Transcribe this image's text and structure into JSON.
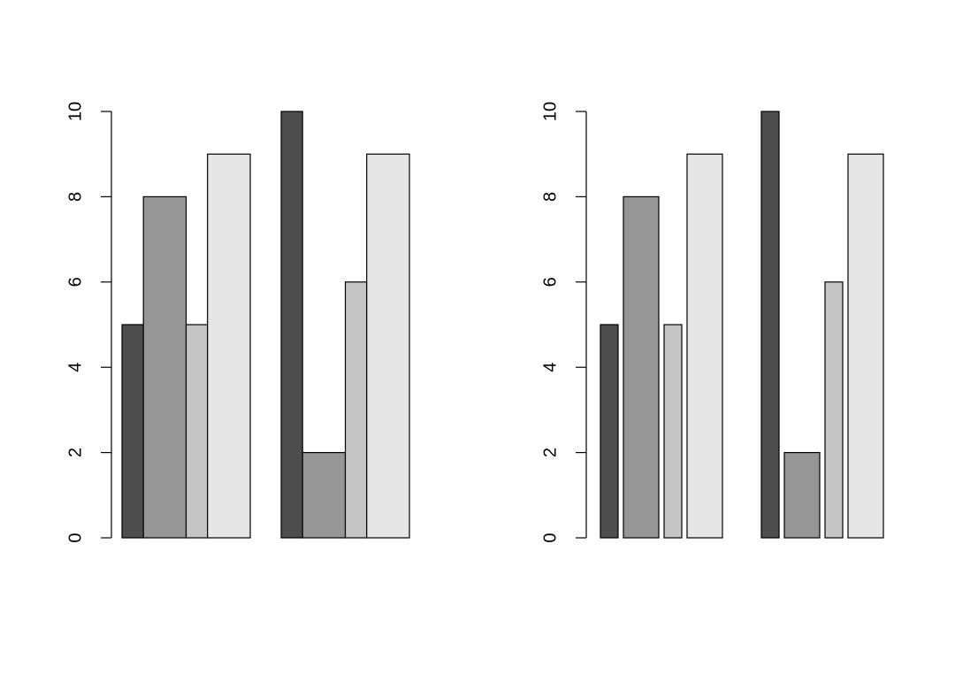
{
  "chart_data": [
    {
      "type": "bar",
      "categories": [
        null,
        null
      ],
      "series": [
        {
          "color": "#4d4d4d",
          "values": [
            5,
            10
          ]
        },
        {
          "color": "#969696",
          "values": [
            8,
            2
          ]
        },
        {
          "color": "#c6c6c6",
          "values": [
            5,
            6
          ]
        },
        {
          "color": "#e6e6e6",
          "values": [
            9,
            9
          ]
        }
      ],
      "ylim": [
        0,
        10
      ],
      "yticks": [
        0,
        2,
        4,
        6,
        8,
        10
      ]
    },
    {
      "type": "bar",
      "categories": [
        null,
        null
      ],
      "series": [
        {
          "color": "#4d4d4d",
          "values": [
            5,
            10
          ]
        },
        {
          "color": "#969696",
          "values": [
            8,
            2
          ]
        },
        {
          "color": "#c6c6c6",
          "values": [
            5,
            6
          ]
        },
        {
          "color": "#e6e6e6",
          "values": [
            9,
            9
          ]
        }
      ],
      "ylim": [
        0,
        10
      ],
      "yticks": [
        0,
        2,
        4,
        6,
        8,
        10
      ]
    }
  ]
}
